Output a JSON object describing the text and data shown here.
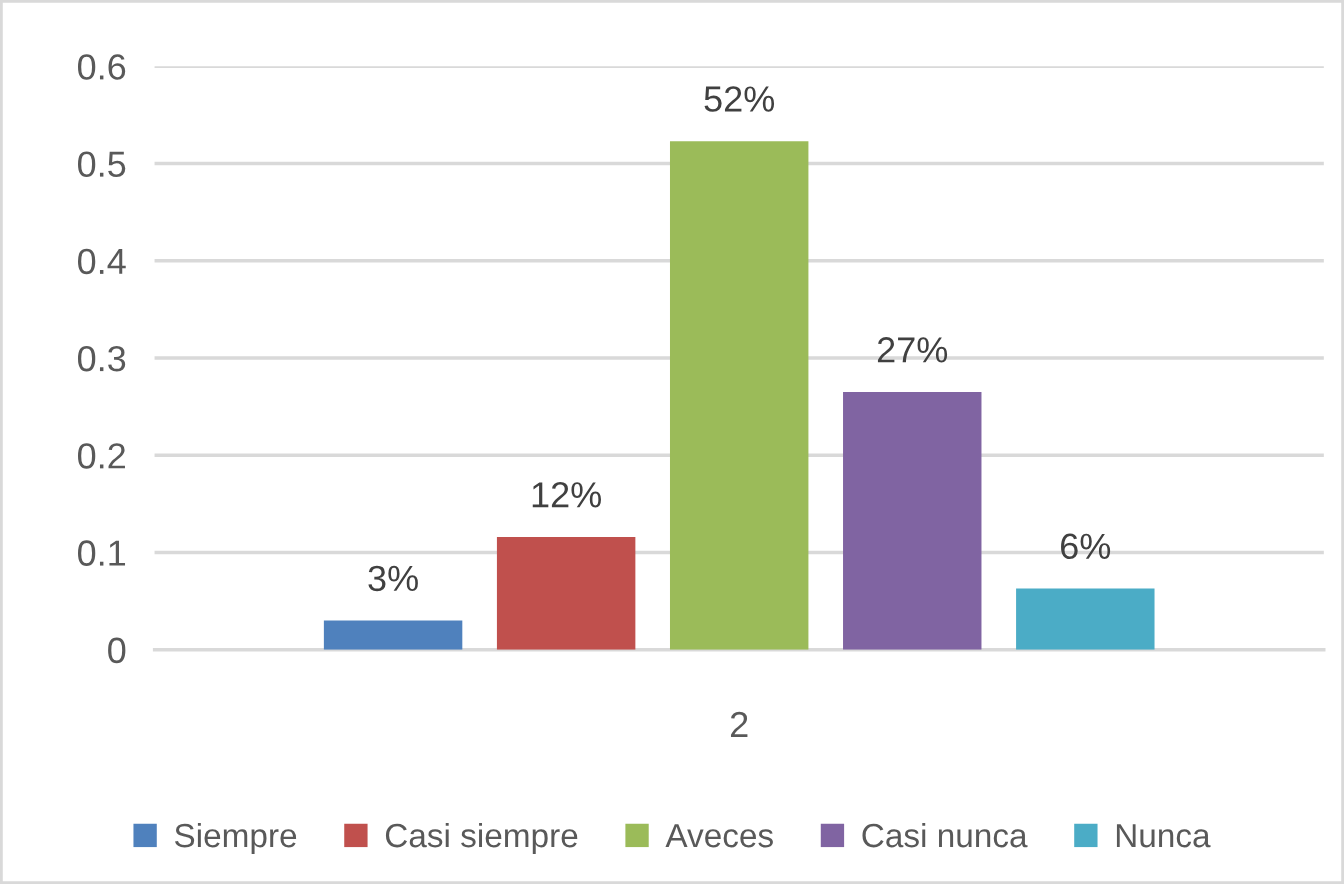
{
  "chart_data": {
    "type": "bar",
    "categories": [
      "2"
    ],
    "series": [
      {
        "name": "Siempre",
        "color": "#4f81bd",
        "values": [
          0.03
        ],
        "value_labels": [
          "3%"
        ]
      },
      {
        "name": "Casi siempre",
        "color": "#c0504d",
        "values": [
          0.116
        ],
        "value_labels": [
          "12%"
        ]
      },
      {
        "name": "Aveces",
        "color": "#9bbb59",
        "values": [
          0.523
        ],
        "value_labels": [
          "52%"
        ]
      },
      {
        "name": "Casi nunca",
        "color": "#8064a2",
        "values": [
          0.265
        ],
        "value_labels": [
          "27%"
        ]
      },
      {
        "name": "Nunca",
        "color": "#4bacc6",
        "values": [
          0.063
        ],
        "value_labels": [
          "6%"
        ]
      }
    ],
    "ylim": [
      0,
      0.6
    ],
    "yticks": [
      0,
      0.1,
      0.2,
      0.3,
      0.4,
      0.5,
      0.6
    ],
    "grid": "y",
    "legend": "bottom"
  }
}
